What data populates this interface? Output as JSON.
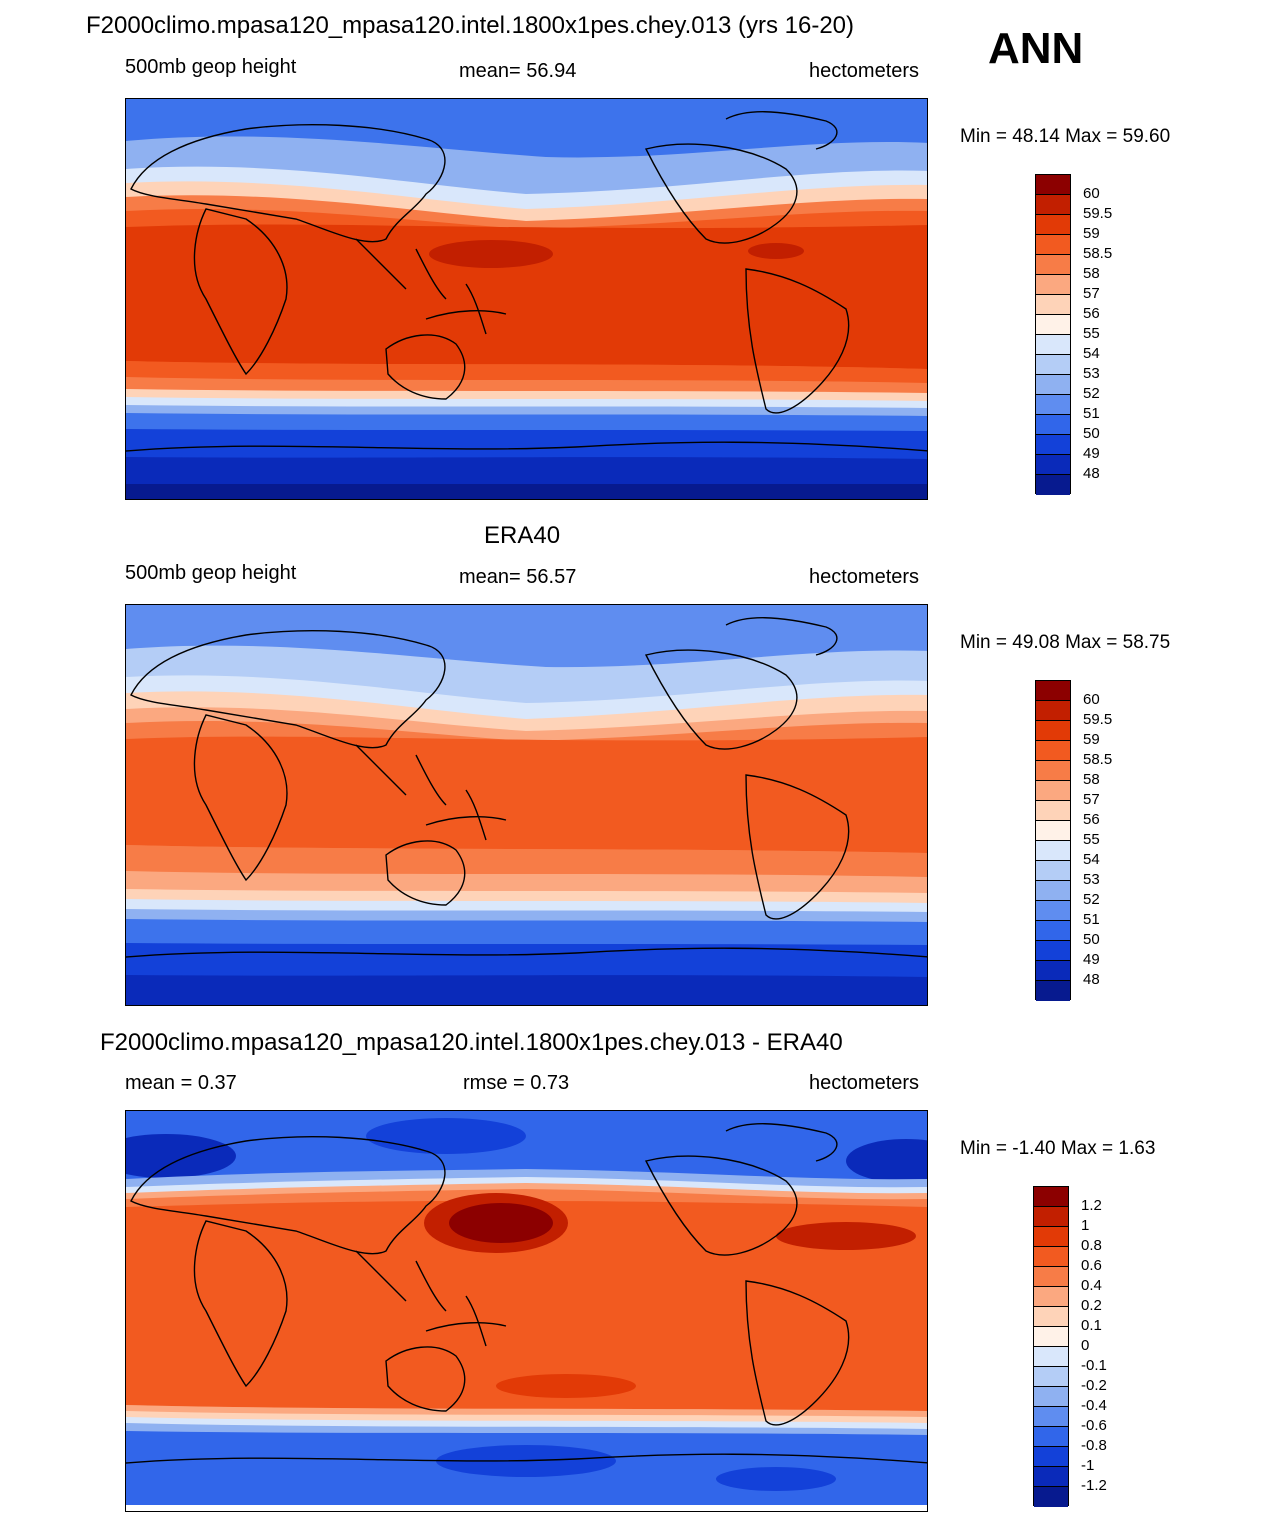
{
  "header": {
    "title": "F2000climo.mpasa120_mpasa120.intel.1800x1pes.chey.013 (yrs 16-20)",
    "season": "ANN"
  },
  "panels": [
    {
      "title": "",
      "left": "500mb geop height",
      "center": "mean=  56.94",
      "right": "hectometers",
      "minmax": "Min =  48.14 Max =  59.60",
      "levels": [
        "60",
        "59.5",
        "59",
        "58.5",
        "58",
        "57",
        "56",
        "55",
        "54",
        "53",
        "52",
        "51",
        "50",
        "49",
        "48"
      ],
      "colors": [
        "#8c0000",
        "#c21f00",
        "#e23a06",
        "#f25a20",
        "#f77c47",
        "#fba880",
        "#fed3b8",
        "#fff2e8",
        "#d9e7fb",
        "#b4cdf6",
        "#8fb1f1",
        "#5f8df0",
        "#3166ea",
        "#1341d9",
        "#0a2aba",
        "#071a8f"
      ]
    },
    {
      "title": "ERA40",
      "left": "500mb geop height",
      "center": "mean=  56.57",
      "right": "hectometers",
      "minmax": "Min =  49.08 Max =  58.75",
      "levels": [
        "60",
        "59.5",
        "59",
        "58.5",
        "58",
        "57",
        "56",
        "55",
        "54",
        "53",
        "52",
        "51",
        "50",
        "49",
        "48"
      ],
      "colors": [
        "#8c0000",
        "#c21f00",
        "#e23a06",
        "#f25a20",
        "#f77c47",
        "#fba880",
        "#fed3b8",
        "#fff2e8",
        "#d9e7fb",
        "#b4cdf6",
        "#8fb1f1",
        "#5f8df0",
        "#3166ea",
        "#1341d9",
        "#0a2aba",
        "#071a8f"
      ]
    },
    {
      "title": "F2000climo.mpasa120_mpasa120.intel.1800x1pes.chey.013 - ERA40",
      "left": "mean =   0.37",
      "center": "rmse =   0.73",
      "right": "hectometers",
      "minmax": "Min =  -1.40 Max =   1.63",
      "levels": [
        "1.2",
        "1",
        "0.8",
        "0.6",
        "0.4",
        "0.2",
        "0.1",
        "0",
        "-0.1",
        "-0.2",
        "-0.4",
        "-0.6",
        "-0.8",
        "-1",
        "-1.2"
      ],
      "colors": [
        "#8c0000",
        "#c21f00",
        "#e23a06",
        "#f25a20",
        "#f77c47",
        "#fba880",
        "#fed3b8",
        "#fff2e8",
        "#d9e7fb",
        "#b4cdf6",
        "#8fb1f1",
        "#5f8df0",
        "#3166ea",
        "#1341d9",
        "#0a2aba",
        "#071a8f"
      ]
    }
  ]
}
